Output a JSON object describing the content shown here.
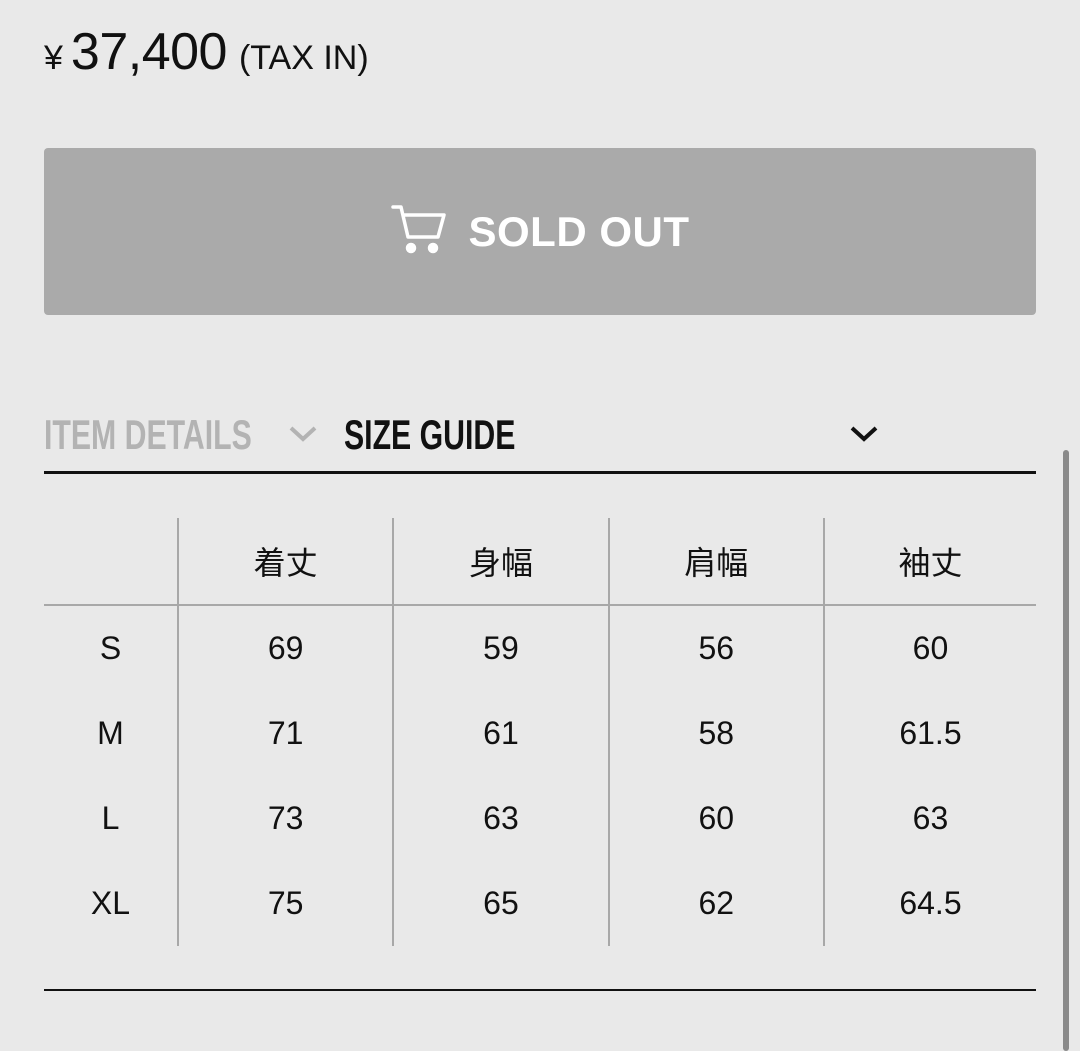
{
  "price": {
    "currency_symbol": "¥",
    "amount": "37,400",
    "tax_note": "(TAX IN)"
  },
  "cart_button": {
    "icon": "cart-icon",
    "label": "SOLD OUT",
    "color": "#aaaaaa"
  },
  "tabs": [
    {
      "label": "ITEM DETAILS",
      "active": false
    },
    {
      "label": "SIZE GUIDE",
      "active": true
    }
  ],
  "size_table": {
    "headers": [
      "",
      "着丈",
      "身幅",
      "肩幅",
      "袖丈"
    ],
    "rows": [
      [
        "S",
        "69",
        "59",
        "56",
        "60"
      ],
      [
        "M",
        "71",
        "61",
        "58",
        "61.5"
      ],
      [
        "L",
        "73",
        "63",
        "60",
        "63"
      ],
      [
        "XL",
        "75",
        "65",
        "62",
        "64.5"
      ]
    ]
  }
}
